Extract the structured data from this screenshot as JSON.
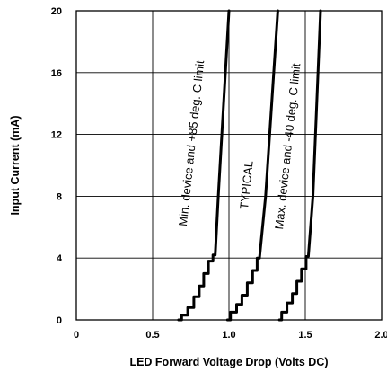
{
  "chart_data": {
    "type": "line",
    "xlabel": "LED Forward Voltage Drop (Volts DC)",
    "ylabel": "Input Current (mA)",
    "xlim": [
      0,
      2.0
    ],
    "ylim": [
      0,
      20
    ],
    "x_ticks": [
      "0",
      "0.5",
      "1.0",
      "1.5",
      "2.0"
    ],
    "y_ticks": [
      "0",
      "4",
      "8",
      "12",
      "16",
      "20"
    ],
    "grid": true,
    "series": [
      {
        "name": "Min. device and +85 deg. C limit",
        "x": [
          0.67,
          0.71,
          0.75,
          0.79,
          0.82,
          0.85,
          0.88,
          0.91,
          0.93,
          1.0
        ],
        "y": [
          0,
          0.3,
          0.8,
          1.5,
          2.2,
          3.0,
          3.8,
          4.2,
          8.0,
          20.0
        ]
      },
      {
        "name": "TYPICAL",
        "x": [
          0.99,
          1.03,
          1.07,
          1.1,
          1.14,
          1.17,
          1.2,
          1.24,
          1.32
        ],
        "y": [
          0,
          0.5,
          1.0,
          1.6,
          2.4,
          3.2,
          4.0,
          8.0,
          20.0
        ]
      },
      {
        "name": "Max. device and -40 deg. C limit",
        "x": [
          1.33,
          1.36,
          1.4,
          1.43,
          1.46,
          1.49,
          1.52,
          1.55,
          1.6
        ],
        "y": [
          0,
          0.5,
          1.1,
          1.7,
          2.5,
          3.3,
          4.1,
          8.0,
          20.0
        ]
      }
    ]
  }
}
